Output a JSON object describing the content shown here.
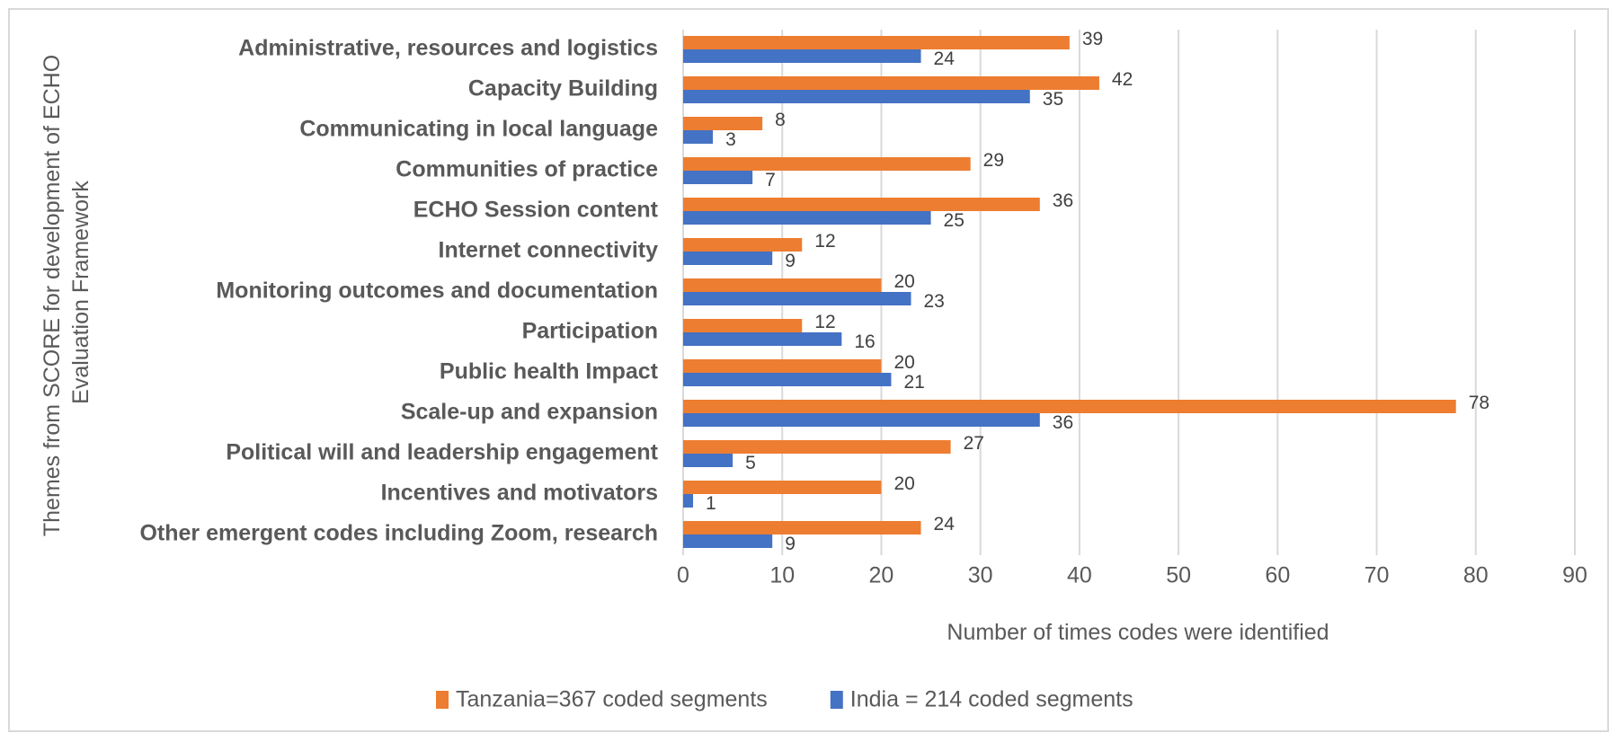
{
  "chart_data": {
    "type": "bar",
    "orientation": "horizontal",
    "title": "",
    "categories": [
      "Administrative, resources and logistics",
      "Capacity Building",
      "Communicating in local language",
      "Communities of practice",
      "ECHO Session content",
      "Internet connectivity ",
      "Monitoring outcomes and documentation",
      "Participation",
      "Public health Impact",
      "Scale-up and expansion",
      "Political will and leadership engagement",
      "Incentives and motivators",
      "Other emergent codes including Zoom, research"
    ],
    "series": [
      {
        "name": "Tanzania=367 coded segments",
        "color": "#ED7D31",
        "values": [
          39,
          42,
          8,
          29,
          36,
          12,
          20,
          12,
          20,
          78,
          27,
          20,
          24
        ]
      },
      {
        "name": "India = 214 coded segments",
        "color": "#4472C4",
        "values": [
          24,
          35,
          3,
          7,
          25,
          9,
          23,
          16,
          21,
          36,
          5,
          1,
          9
        ]
      }
    ],
    "xlabel": "Number of times codes were identified",
    "ylabel": "Themes from SCORE for development of ECHO Evaluation Framework",
    "ylabel_lines": [
      "Themes from SCORE for development of ECHO",
      "Evaluation Framework"
    ],
    "xlim": [
      0,
      90
    ],
    "xticks": [
      0,
      10,
      20,
      30,
      40,
      50,
      60,
      70,
      80,
      90
    ],
    "grid": "vertical",
    "data_labels": true,
    "legend": "bottom",
    "gridline_color": "#d9d9d9"
  }
}
